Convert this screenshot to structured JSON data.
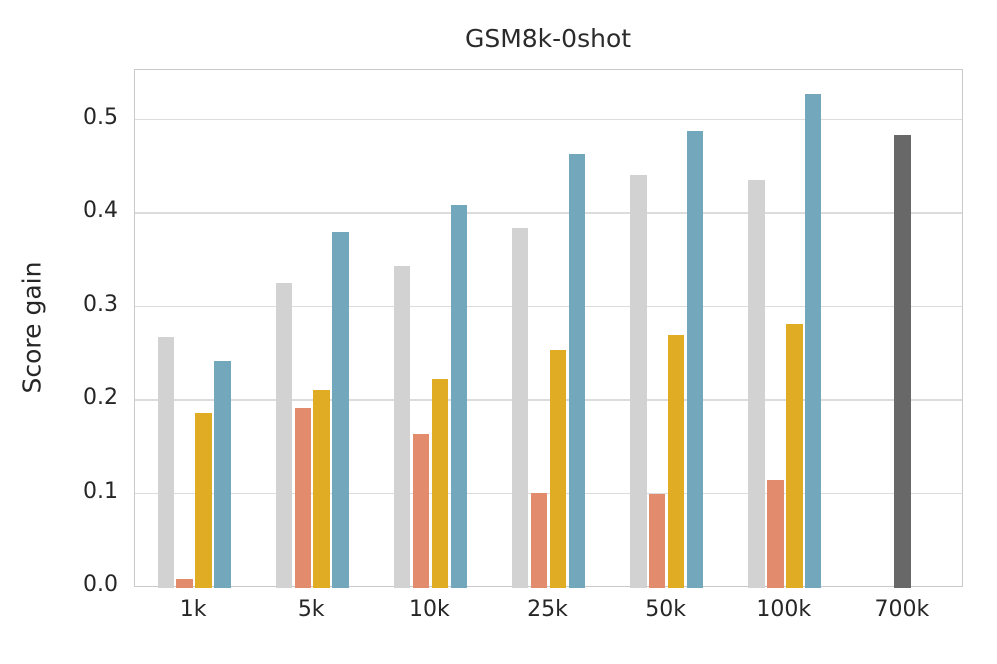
{
  "chart_data": {
    "type": "bar",
    "title": "GSM8k-0shot",
    "xlabel": "",
    "ylabel": "Score gain",
    "categories": [
      "1k",
      "5k",
      "10k",
      "25k",
      "50k",
      "100k",
      "700k"
    ],
    "series": [
      {
        "name": "series-lightgray",
        "color": "#d2d2d2",
        "values": [
          0.266,
          0.324,
          0.342,
          0.383,
          0.44,
          0.434,
          null
        ]
      },
      {
        "name": "series-orange",
        "color": "#e28c6d",
        "values": [
          0.008,
          0.19,
          0.163,
          0.1,
          0.098,
          0.113,
          null
        ]
      },
      {
        "name": "series-gold",
        "color": "#dfac24",
        "values": [
          0.185,
          0.21,
          0.222,
          0.252,
          0.269,
          0.28,
          null
        ]
      },
      {
        "name": "series-blue",
        "color": "#73a8bc",
        "values": [
          0.241,
          0.379,
          0.408,
          0.462,
          0.487,
          0.526,
          null
        ]
      },
      {
        "name": "series-darkgray",
        "color": "#686868",
        "centered": true,
        "values": [
          null,
          null,
          null,
          null,
          null,
          null,
          0.482
        ]
      }
    ],
    "yticks": [
      "0.0",
      "0.1",
      "0.2",
      "0.3",
      "0.4",
      "0.5"
    ],
    "ylim": [
      0,
      0.552
    ],
    "grid": true,
    "legend": false,
    "colors": {
      "text": "#262626",
      "gridline": "#dcdcdc",
      "spine": "#c9c9c9",
      "background": "#ffffff"
    }
  }
}
